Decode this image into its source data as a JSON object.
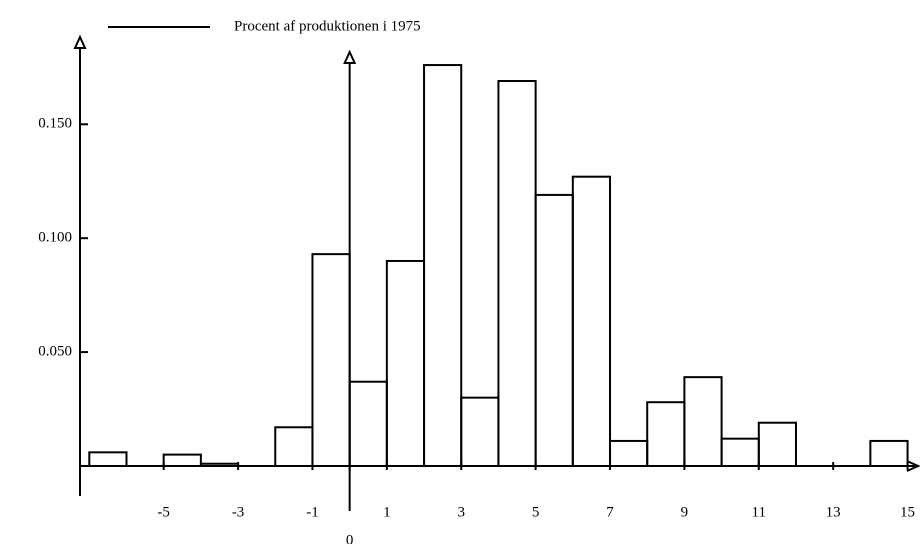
{
  "chart_data": {
    "type": "histogram",
    "legend": "Procent af produktionen i 1975",
    "series": [
      {
        "name": "Procent af produktionen i 1975",
        "color": "#000000",
        "bins": [
          -7,
          -6,
          -5,
          -4,
          -3,
          -2,
          -1,
          0,
          1,
          2,
          3,
          4,
          5,
          6,
          7,
          8,
          9,
          10,
          11,
          12,
          13,
          14,
          15
        ],
        "values": [
          0.006,
          0,
          0.005,
          0.001,
          0,
          0.017,
          0.093,
          0.037,
          0.09,
          0.176,
          0.03,
          0.169,
          0.119,
          0.127,
          0.011,
          0.028,
          0.039,
          0.012,
          0.019,
          0,
          0,
          0.011
        ]
      }
    ],
    "xlim": [
      -7.25,
      15.2
    ],
    "ylim": [
      0,
      0.187
    ],
    "xticks": [
      -5,
      -3,
      -1,
      0,
      1,
      3,
      5,
      7,
      9,
      11,
      13,
      15
    ],
    "yticks": [
      {
        "value": 0.05,
        "label": "0.050"
      },
      {
        "value": 0.1,
        "label": "0.100"
      },
      {
        "value": 0.15,
        "label": "0.150"
      }
    ],
    "legend_position": "top"
  }
}
